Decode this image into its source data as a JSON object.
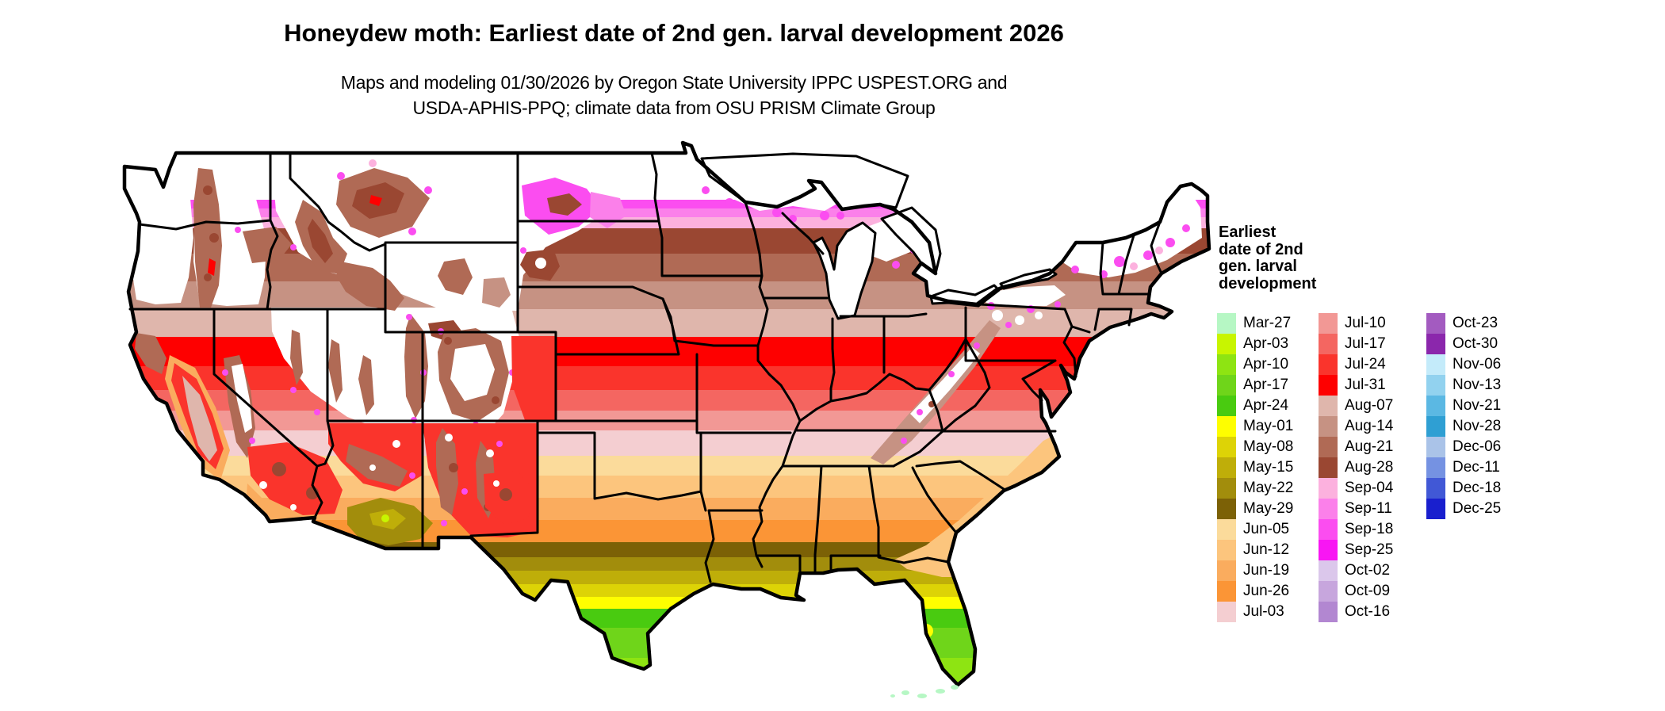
{
  "header": {
    "title": "Honeydew moth: Earliest date of 2nd gen. larval development 2026",
    "subtitle_line1": "Maps and modeling 01/30/2026 by Oregon State University IPPC USPEST.ORG and",
    "subtitle_line2": "USDA-APHIS-PPQ; climate data from OSU PRISM Climate Group"
  },
  "map": {
    "region": "contiguous-united-states",
    "state_border_color": "#000000",
    "no_data_color": "#FFFFFF"
  },
  "legend": {
    "title_lines": [
      "Earliest",
      "date of 2nd",
      "gen. larval",
      "development"
    ],
    "columns": [
      {
        "entries": [
          {
            "label": "Mar-27",
            "color": "#B6F7C4"
          },
          {
            "label": "Apr-03",
            "color": "#C8F500"
          },
          {
            "label": "Apr-10",
            "color": "#8EE412"
          },
          {
            "label": "Apr-17",
            "color": "#6FD51A"
          },
          {
            "label": "Apr-24",
            "color": "#49CB10"
          },
          {
            "label": "May-01",
            "color": "#FEFE00"
          },
          {
            "label": "May-08",
            "color": "#DDD306"
          },
          {
            "label": "May-15",
            "color": "#BFAE09"
          },
          {
            "label": "May-22",
            "color": "#A28D0C"
          },
          {
            "label": "May-29",
            "color": "#7C6106"
          },
          {
            "label": "Jun-05",
            "color": "#FBDB9B"
          },
          {
            "label": "Jun-12",
            "color": "#FCC57D"
          },
          {
            "label": "Jun-19",
            "color": "#FAAC5E"
          },
          {
            "label": "Jun-26",
            "color": "#FB9536"
          },
          {
            "label": "Jul-03",
            "color": "#F4CED1"
          }
        ]
      },
      {
        "entries": [
          {
            "label": "Jul-10",
            "color": "#F29895"
          },
          {
            "label": "Jul-17",
            "color": "#F46661"
          },
          {
            "label": "Jul-24",
            "color": "#FA342C"
          },
          {
            "label": "Jul-31",
            "color": "#FE0000"
          },
          {
            "label": "Aug-07",
            "color": "#DFB6AC"
          },
          {
            "label": "Aug-14",
            "color": "#C69283"
          },
          {
            "label": "Aug-21",
            "color": "#B06A55"
          },
          {
            "label": "Aug-28",
            "color": "#9A4732"
          },
          {
            "label": "Sep-04",
            "color": "#FCB1DE"
          },
          {
            "label": "Sep-11",
            "color": "#FB80EA"
          },
          {
            "label": "Sep-18",
            "color": "#FB4DF0"
          },
          {
            "label": "Sep-25",
            "color": "#F816F3"
          },
          {
            "label": "Oct-02",
            "color": "#DBC7EB"
          },
          {
            "label": "Oct-09",
            "color": "#C7A6DD"
          },
          {
            "label": "Oct-16",
            "color": "#B287D1"
          }
        ]
      },
      {
        "entries": [
          {
            "label": "Oct-23",
            "color": "#A35BC0"
          },
          {
            "label": "Oct-30",
            "color": "#8B27AC"
          },
          {
            "label": "Nov-06",
            "color": "#C4EBFA"
          },
          {
            "label": "Nov-13",
            "color": "#92D2EF"
          },
          {
            "label": "Nov-21",
            "color": "#5BB8E3"
          },
          {
            "label": "Nov-28",
            "color": "#2F9FD3"
          },
          {
            "label": "Dec-06",
            "color": "#AAC3E8"
          },
          {
            "label": "Dec-11",
            "color": "#7592E2"
          },
          {
            "label": "Dec-18",
            "color": "#4158D6"
          },
          {
            "label": "Dec-25",
            "color": "#191FCE"
          }
        ]
      }
    ]
  }
}
